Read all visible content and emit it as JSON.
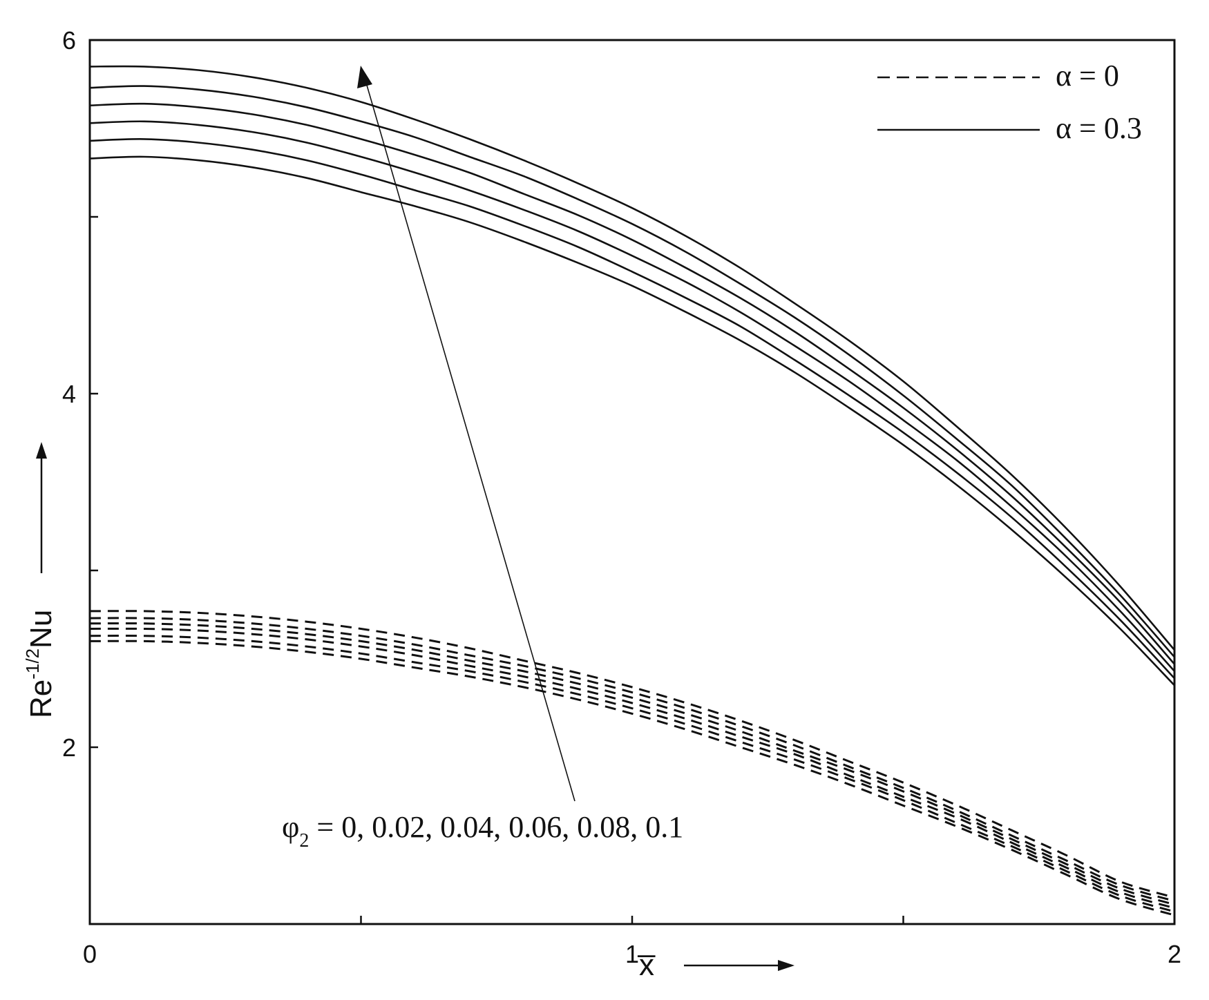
{
  "chart_data": {
    "type": "line",
    "xlabel": "x̅",
    "ylabel_base": "Re",
    "ylabel_sup": "-1/2",
    "ylabel_tail": "Nu",
    "xlim": [
      0,
      2
    ],
    "ylim": [
      1.0,
      6.0
    ],
    "x_ticks": [
      0,
      0.5,
      1,
      1.5,
      2
    ],
    "x_tick_labels": [
      "0",
      "",
      "1",
      "",
      "2"
    ],
    "y_ticks": [
      2,
      3,
      4,
      5,
      6
    ],
    "y_tick_labels": [
      "2",
      "",
      "4",
      "",
      "6"
    ],
    "legend": [
      {
        "label": "α = 0",
        "style": "dashed"
      },
      {
        "label": "α = 0.3",
        "style": "solid"
      }
    ],
    "legend_position": "top-right",
    "annotation": {
      "phi": "φ",
      "sub": "2",
      "text": " = 0, 0.02, 0.04, 0.06, 0.08, 0.1"
    },
    "parameter_values": [
      0,
      0.02,
      0.04,
      0.06,
      0.08,
      0.1
    ],
    "x": [
      0,
      0.1,
      0.2,
      0.3,
      0.4,
      0.5,
      0.6,
      0.7,
      0.8,
      0.9,
      1.0,
      1.1,
      1.2,
      1.3,
      1.4,
      1.5,
      1.6,
      1.7,
      1.8,
      1.9,
      2.0
    ],
    "series": [
      {
        "style": "solid",
        "alpha": 0.3,
        "phi2": 0,
        "values": [
          5.33,
          5.34,
          5.32,
          5.28,
          5.22,
          5.14,
          5.06,
          4.97,
          4.86,
          4.74,
          4.61,
          4.46,
          4.3,
          4.12,
          3.92,
          3.71,
          3.48,
          3.23,
          2.96,
          2.67,
          2.35
        ]
      },
      {
        "style": "solid",
        "alpha": 0.3,
        "phi2": 0.02,
        "values": [
          5.43,
          5.44,
          5.42,
          5.38,
          5.32,
          5.24,
          5.15,
          5.06,
          4.95,
          4.83,
          4.69,
          4.54,
          4.38,
          4.19,
          3.99,
          3.78,
          3.55,
          3.3,
          3.02,
          2.72,
          2.39
        ]
      },
      {
        "style": "solid",
        "alpha": 0.3,
        "phi2": 0.04,
        "values": [
          5.53,
          5.54,
          5.52,
          5.48,
          5.42,
          5.34,
          5.25,
          5.15,
          5.04,
          4.92,
          4.78,
          4.63,
          4.46,
          4.27,
          4.07,
          3.85,
          3.62,
          3.36,
          3.08,
          2.77,
          2.43
        ]
      },
      {
        "style": "solid",
        "alpha": 0.3,
        "phi2": 0.06,
        "values": [
          5.63,
          5.64,
          5.62,
          5.58,
          5.52,
          5.44,
          5.35,
          5.25,
          5.13,
          5.01,
          4.87,
          4.71,
          4.54,
          4.35,
          4.14,
          3.92,
          3.68,
          3.42,
          3.13,
          2.82,
          2.47
        ]
      },
      {
        "style": "solid",
        "alpha": 0.3,
        "phi2": 0.08,
        "values": [
          5.73,
          5.74,
          5.72,
          5.68,
          5.62,
          5.54,
          5.45,
          5.34,
          5.23,
          5.1,
          4.96,
          4.8,
          4.62,
          4.43,
          4.22,
          3.99,
          3.74,
          3.48,
          3.18,
          2.86,
          2.51
        ]
      },
      {
        "style": "solid",
        "alpha": 0.3,
        "phi2": 0.1,
        "values": [
          5.85,
          5.85,
          5.83,
          5.79,
          5.73,
          5.65,
          5.55,
          5.44,
          5.32,
          5.19,
          5.05,
          4.89,
          4.71,
          4.51,
          4.3,
          4.07,
          3.81,
          3.54,
          3.24,
          2.91,
          2.55
        ]
      },
      {
        "style": "dashed",
        "alpha": 0,
        "phi2": 0,
        "values": [
          2.6,
          2.6,
          2.59,
          2.57,
          2.54,
          2.5,
          2.45,
          2.4,
          2.34,
          2.27,
          2.19,
          2.1,
          2.0,
          1.9,
          1.79,
          1.67,
          1.55,
          1.42,
          1.28,
          1.14,
          1.05
        ]
      },
      {
        "style": "dashed",
        "alpha": 0,
        "phi2": 0.02,
        "values": [
          2.63,
          2.63,
          2.62,
          2.6,
          2.57,
          2.53,
          2.48,
          2.43,
          2.37,
          2.3,
          2.22,
          2.13,
          2.03,
          1.93,
          1.82,
          1.7,
          1.57,
          1.44,
          1.3,
          1.16,
          1.07
        ]
      },
      {
        "style": "dashed",
        "alpha": 0,
        "phi2": 0.04,
        "values": [
          2.67,
          2.67,
          2.66,
          2.64,
          2.61,
          2.57,
          2.52,
          2.46,
          2.4,
          2.33,
          2.25,
          2.16,
          2.06,
          1.96,
          1.84,
          1.72,
          1.6,
          1.46,
          1.32,
          1.18,
          1.09
        ]
      },
      {
        "style": "dashed",
        "alpha": 0,
        "phi2": 0.06,
        "values": [
          2.7,
          2.7,
          2.69,
          2.67,
          2.64,
          2.6,
          2.55,
          2.49,
          2.43,
          2.36,
          2.28,
          2.19,
          2.09,
          1.98,
          1.87,
          1.75,
          1.62,
          1.48,
          1.34,
          1.2,
          1.11
        ]
      },
      {
        "style": "dashed",
        "alpha": 0,
        "phi2": 0.08,
        "values": [
          2.73,
          2.73,
          2.72,
          2.7,
          2.67,
          2.63,
          2.58,
          2.52,
          2.46,
          2.39,
          2.31,
          2.22,
          2.12,
          2.01,
          1.89,
          1.77,
          1.64,
          1.5,
          1.36,
          1.22,
          1.13
        ]
      },
      {
        "style": "dashed",
        "alpha": 0,
        "phi2": 0.1,
        "values": [
          2.77,
          2.77,
          2.76,
          2.74,
          2.71,
          2.67,
          2.62,
          2.56,
          2.49,
          2.42,
          2.34,
          2.25,
          2.15,
          2.04,
          1.92,
          1.8,
          1.67,
          1.53,
          1.39,
          1.24,
          1.15
        ]
      }
    ]
  }
}
